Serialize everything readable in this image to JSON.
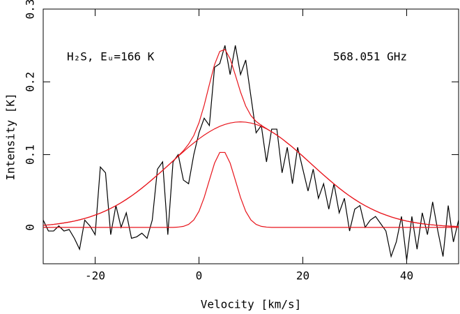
{
  "chart_data": {
    "type": "line",
    "x_label": "Velocity  [km/s]",
    "y_label": "Intensity [K]",
    "annotations": [
      "H₂S, Eᵤ=166 K",
      "568.051 GHz"
    ],
    "xlim": [
      -30,
      50
    ],
    "ylim": [
      -0.05,
      0.3
    ],
    "xticks": [
      -20,
      0,
      20,
      40
    ],
    "yticks": [
      0,
      0.1,
      0.2,
      0.3
    ],
    "x": [
      -30,
      -29,
      -28,
      -27,
      -26,
      -25,
      -24,
      -23,
      -22,
      -21,
      -20,
      -19,
      -18,
      -17,
      -16,
      -15,
      -14,
      -13,
      -12,
      -11,
      -10,
      -9,
      -8,
      -7,
      -6,
      -5,
      -4,
      -3,
      -2,
      -1,
      0,
      1,
      2,
      3,
      4,
      5,
      6,
      7,
      8,
      9,
      10,
      11,
      12,
      13,
      14,
      15,
      16,
      17,
      18,
      19,
      20,
      21,
      22,
      23,
      24,
      25,
      26,
      27,
      28,
      29,
      30,
      31,
      32,
      33,
      34,
      35,
      36,
      37,
      38,
      39,
      40,
      41,
      42,
      43,
      44,
      45,
      46,
      47,
      48,
      49,
      50
    ],
    "series": [
      {
        "color": "#000000",
        "values": [
          0.01,
          -0.005,
          -0.005,
          0.002,
          -0.005,
          -0.003,
          -0.015,
          -0.03,
          0.01,
          0.002,
          -0.01,
          0.083,
          0.075,
          -0.01,
          0.03,
          0.0,
          0.02,
          -0.015,
          -0.013,
          -0.008,
          -0.015,
          0.01,
          0.08,
          0.09,
          -0.01,
          0.09,
          0.1,
          0.065,
          0.06,
          0.1,
          0.13,
          0.15,
          0.14,
          0.22,
          0.225,
          0.25,
          0.21,
          0.25,
          0.21,
          0.23,
          0.18,
          0.13,
          0.14,
          0.09,
          0.135,
          0.135,
          0.075,
          0.11,
          0.06,
          0.11,
          0.08,
          0.05,
          0.08,
          0.04,
          0.06,
          0.025,
          0.06,
          0.02,
          0.04,
          -0.005,
          0.025,
          0.03,
          0.0,
          0.01,
          0.015,
          0.005,
          -0.005,
          -0.04,
          -0.02,
          0.015,
          -0.045,
          0.015,
          -0.03,
          0.02,
          -0.01,
          0.035,
          -0.005,
          -0.04,
          0.03,
          -0.02,
          0.01
        ]
      },
      {
        "color": "#e8141b",
        "values": [
          0.0028,
          0.0034,
          0.0041,
          0.005,
          0.0061,
          0.0073,
          0.0087,
          0.0104,
          0.0123,
          0.0144,
          0.0169,
          0.0196,
          0.0227,
          0.0261,
          0.0298,
          0.0339,
          0.0384,
          0.0432,
          0.0484,
          0.0539,
          0.0597,
          0.0658,
          0.072,
          0.0783,
          0.0848,
          0.0913,
          0.0982,
          0.1054,
          0.1144,
          0.1262,
          0.1438,
          0.1678,
          0.1963,
          0.2237,
          0.2418,
          0.2445,
          0.2317,
          0.2095,
          0.186,
          0.1667,
          0.1536,
          0.1456,
          0.1402,
          0.1358,
          0.1314,
          0.1268,
          0.1217,
          0.116,
          0.1103,
          0.104,
          0.0978,
          0.0913,
          0.0848,
          0.0783,
          0.072,
          0.0658,
          0.0597,
          0.0539,
          0.0484,
          0.0432,
          0.0384,
          0.0339,
          0.0298,
          0.0261,
          0.0227,
          0.0196,
          0.0169,
          0.0144,
          0.0123,
          0.0104,
          0.0087,
          0.0073,
          0.0061,
          0.005,
          0.0041,
          0.0034,
          0.0028,
          0.0022,
          0.0018,
          0.0014,
          0.0011
        ]
      },
      {
        "color": "#e8141b",
        "values": [
          0.0028,
          0.0034,
          0.0041,
          0.005,
          0.0061,
          0.0073,
          0.0087,
          0.0104,
          0.0123,
          0.0144,
          0.0169,
          0.0196,
          0.0227,
          0.0261,
          0.0298,
          0.0339,
          0.0384,
          0.0432,
          0.0484,
          0.0539,
          0.0597,
          0.0658,
          0.072,
          0.0783,
          0.0848,
          0.0913,
          0.0978,
          0.104,
          0.1103,
          0.116,
          0.1217,
          0.1268,
          0.1314,
          0.1354,
          0.1388,
          0.1415,
          0.1434,
          0.1446,
          0.145,
          0.1446,
          0.1434,
          0.1415,
          0.1388,
          0.1354,
          0.1314,
          0.1268,
          0.1217,
          0.116,
          0.1103,
          0.104,
          0.0978,
          0.0913,
          0.0848,
          0.0783,
          0.072,
          0.0658,
          0.0597,
          0.0539,
          0.0484,
          0.0432,
          0.0384,
          0.0339,
          0.0298,
          0.0261,
          0.0227,
          0.0196,
          0.0169,
          0.0144,
          0.0123,
          0.0104,
          0.0087,
          0.0073,
          0.0061,
          0.005,
          0.0041,
          0.0034,
          0.0028,
          0.0022,
          0.0018,
          0.0014,
          0.0011
        ]
      },
      {
        "color": "#e8141b",
        "values": [
          0,
          0,
          0,
          0,
          0,
          0,
          0,
          0,
          0,
          0,
          0,
          0,
          0,
          0,
          0,
          0,
          0,
          0,
          0,
          0,
          0,
          0,
          0,
          0,
          0,
          0,
          0.0004,
          0.0014,
          0.0041,
          0.0102,
          0.0221,
          0.041,
          0.0649,
          0.0883,
          0.103,
          0.103,
          0.0883,
          0.0649,
          0.041,
          0.0221,
          0.0102,
          0.0041,
          0.0014,
          0.0004,
          0,
          0,
          0,
          0,
          0,
          0,
          0,
          0,
          0,
          0,
          0,
          0,
          0,
          0,
          0,
          0,
          0,
          0,
          0,
          0,
          0,
          0,
          0,
          0,
          0,
          0,
          0,
          0,
          0,
          0,
          0,
          0,
          0,
          0,
          0,
          0,
          0
        ]
      }
    ]
  }
}
